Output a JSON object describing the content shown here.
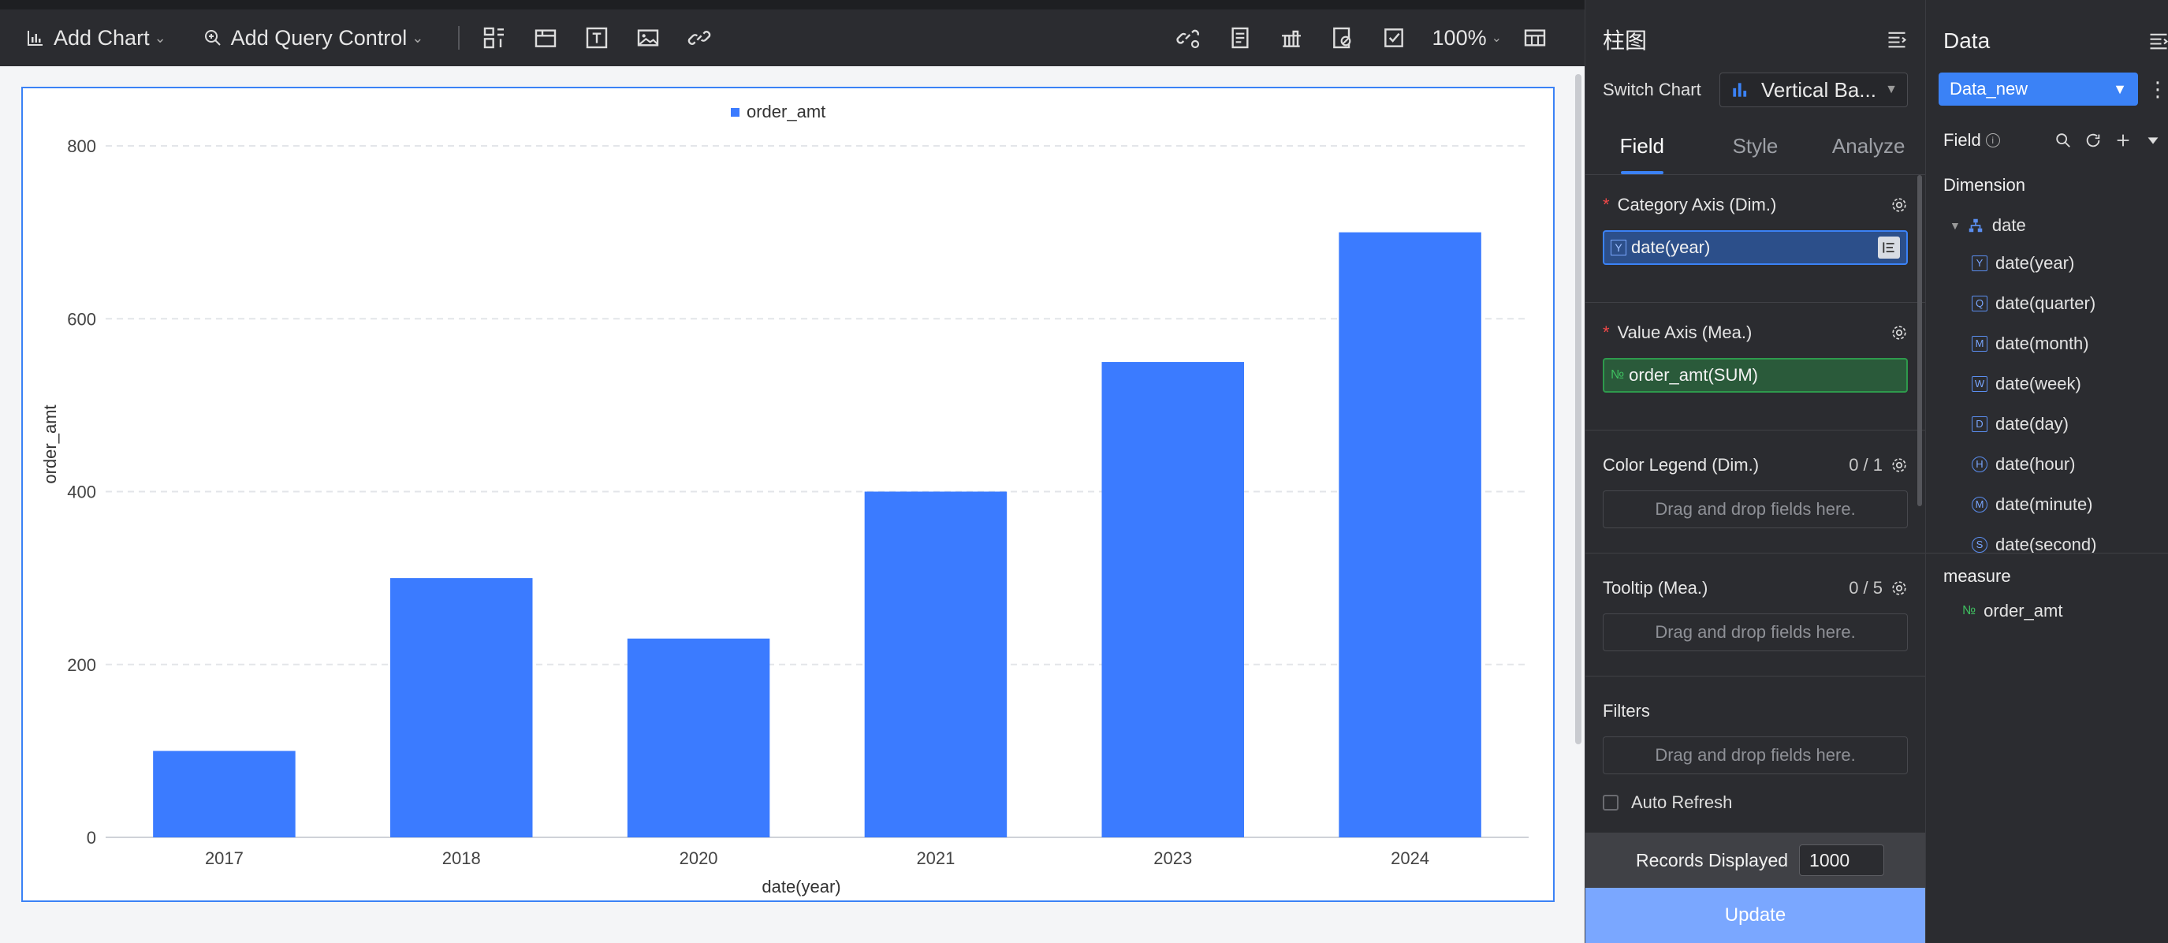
{
  "toolbar": {
    "add_chart": "Add Chart",
    "add_query_control": "Add Query Control",
    "zoom": "100%",
    "colors": {
      "bg": "#2b2c30",
      "accent": "#3b82f6"
    }
  },
  "config": {
    "title": "柱图",
    "switch_chart_label": "Switch Chart",
    "switch_chart_value": "Vertical Ba...",
    "tabs": [
      "Field",
      "Style",
      "Analyze"
    ],
    "active_tab": "Field",
    "category_axis": {
      "label": "Category Axis (Dim.)",
      "field": "date(year)",
      "tag": "Y"
    },
    "value_axis": {
      "label": "Value Axis (Mea.)",
      "field": "order_amt(SUM)",
      "tag": "№"
    },
    "color_legend": {
      "label": "Color Legend (Dim.)",
      "count": "0 / 1",
      "placeholder": "Drag and drop fields here."
    },
    "tooltip": {
      "label": "Tooltip (Mea.)",
      "count": "0 / 5",
      "placeholder": "Drag and drop fields here."
    },
    "filters": {
      "label": "Filters",
      "placeholder": "Drag and drop fields here."
    },
    "auto_refresh": "Auto Refresh",
    "records_label": "Records Displayed",
    "records_value": "1000",
    "update": "Update"
  },
  "data_panel": {
    "title": "Data",
    "dataset": "Data_new",
    "field_label": "Field",
    "dimension_title": "Dimension",
    "dimension_root": "date",
    "dimension_children": [
      {
        "tag": "Y",
        "label": "date(year)",
        "circle": false
      },
      {
        "tag": "Q",
        "label": "date(quarter)",
        "circle": false
      },
      {
        "tag": "M",
        "label": "date(month)",
        "circle": false
      },
      {
        "tag": "W",
        "label": "date(week)",
        "circle": false
      },
      {
        "tag": "D",
        "label": "date(day)",
        "circle": false
      },
      {
        "tag": "H",
        "label": "date(hour)",
        "circle": true
      },
      {
        "tag": "M",
        "label": "date(minute)",
        "circle": true
      },
      {
        "tag": "S",
        "label": "date(second)",
        "circle": true
      }
    ],
    "measure_title": "measure",
    "measure_item": "order_amt"
  },
  "chart_data": {
    "type": "bar",
    "categories": [
      "2017",
      "2018",
      "2020",
      "2021",
      "2023",
      "2024"
    ],
    "series": [
      {
        "name": "order_amt",
        "values": [
          100,
          300,
          230,
          400,
          550,
          700
        ],
        "color": "#3b7bff"
      }
    ],
    "xlabel": "date(year)",
    "ylabel": "order_amt",
    "ylim": [
      0,
      800
    ],
    "yticks": [
      0,
      200,
      400,
      600,
      800
    ],
    "legend": "top-center",
    "grid": true
  }
}
